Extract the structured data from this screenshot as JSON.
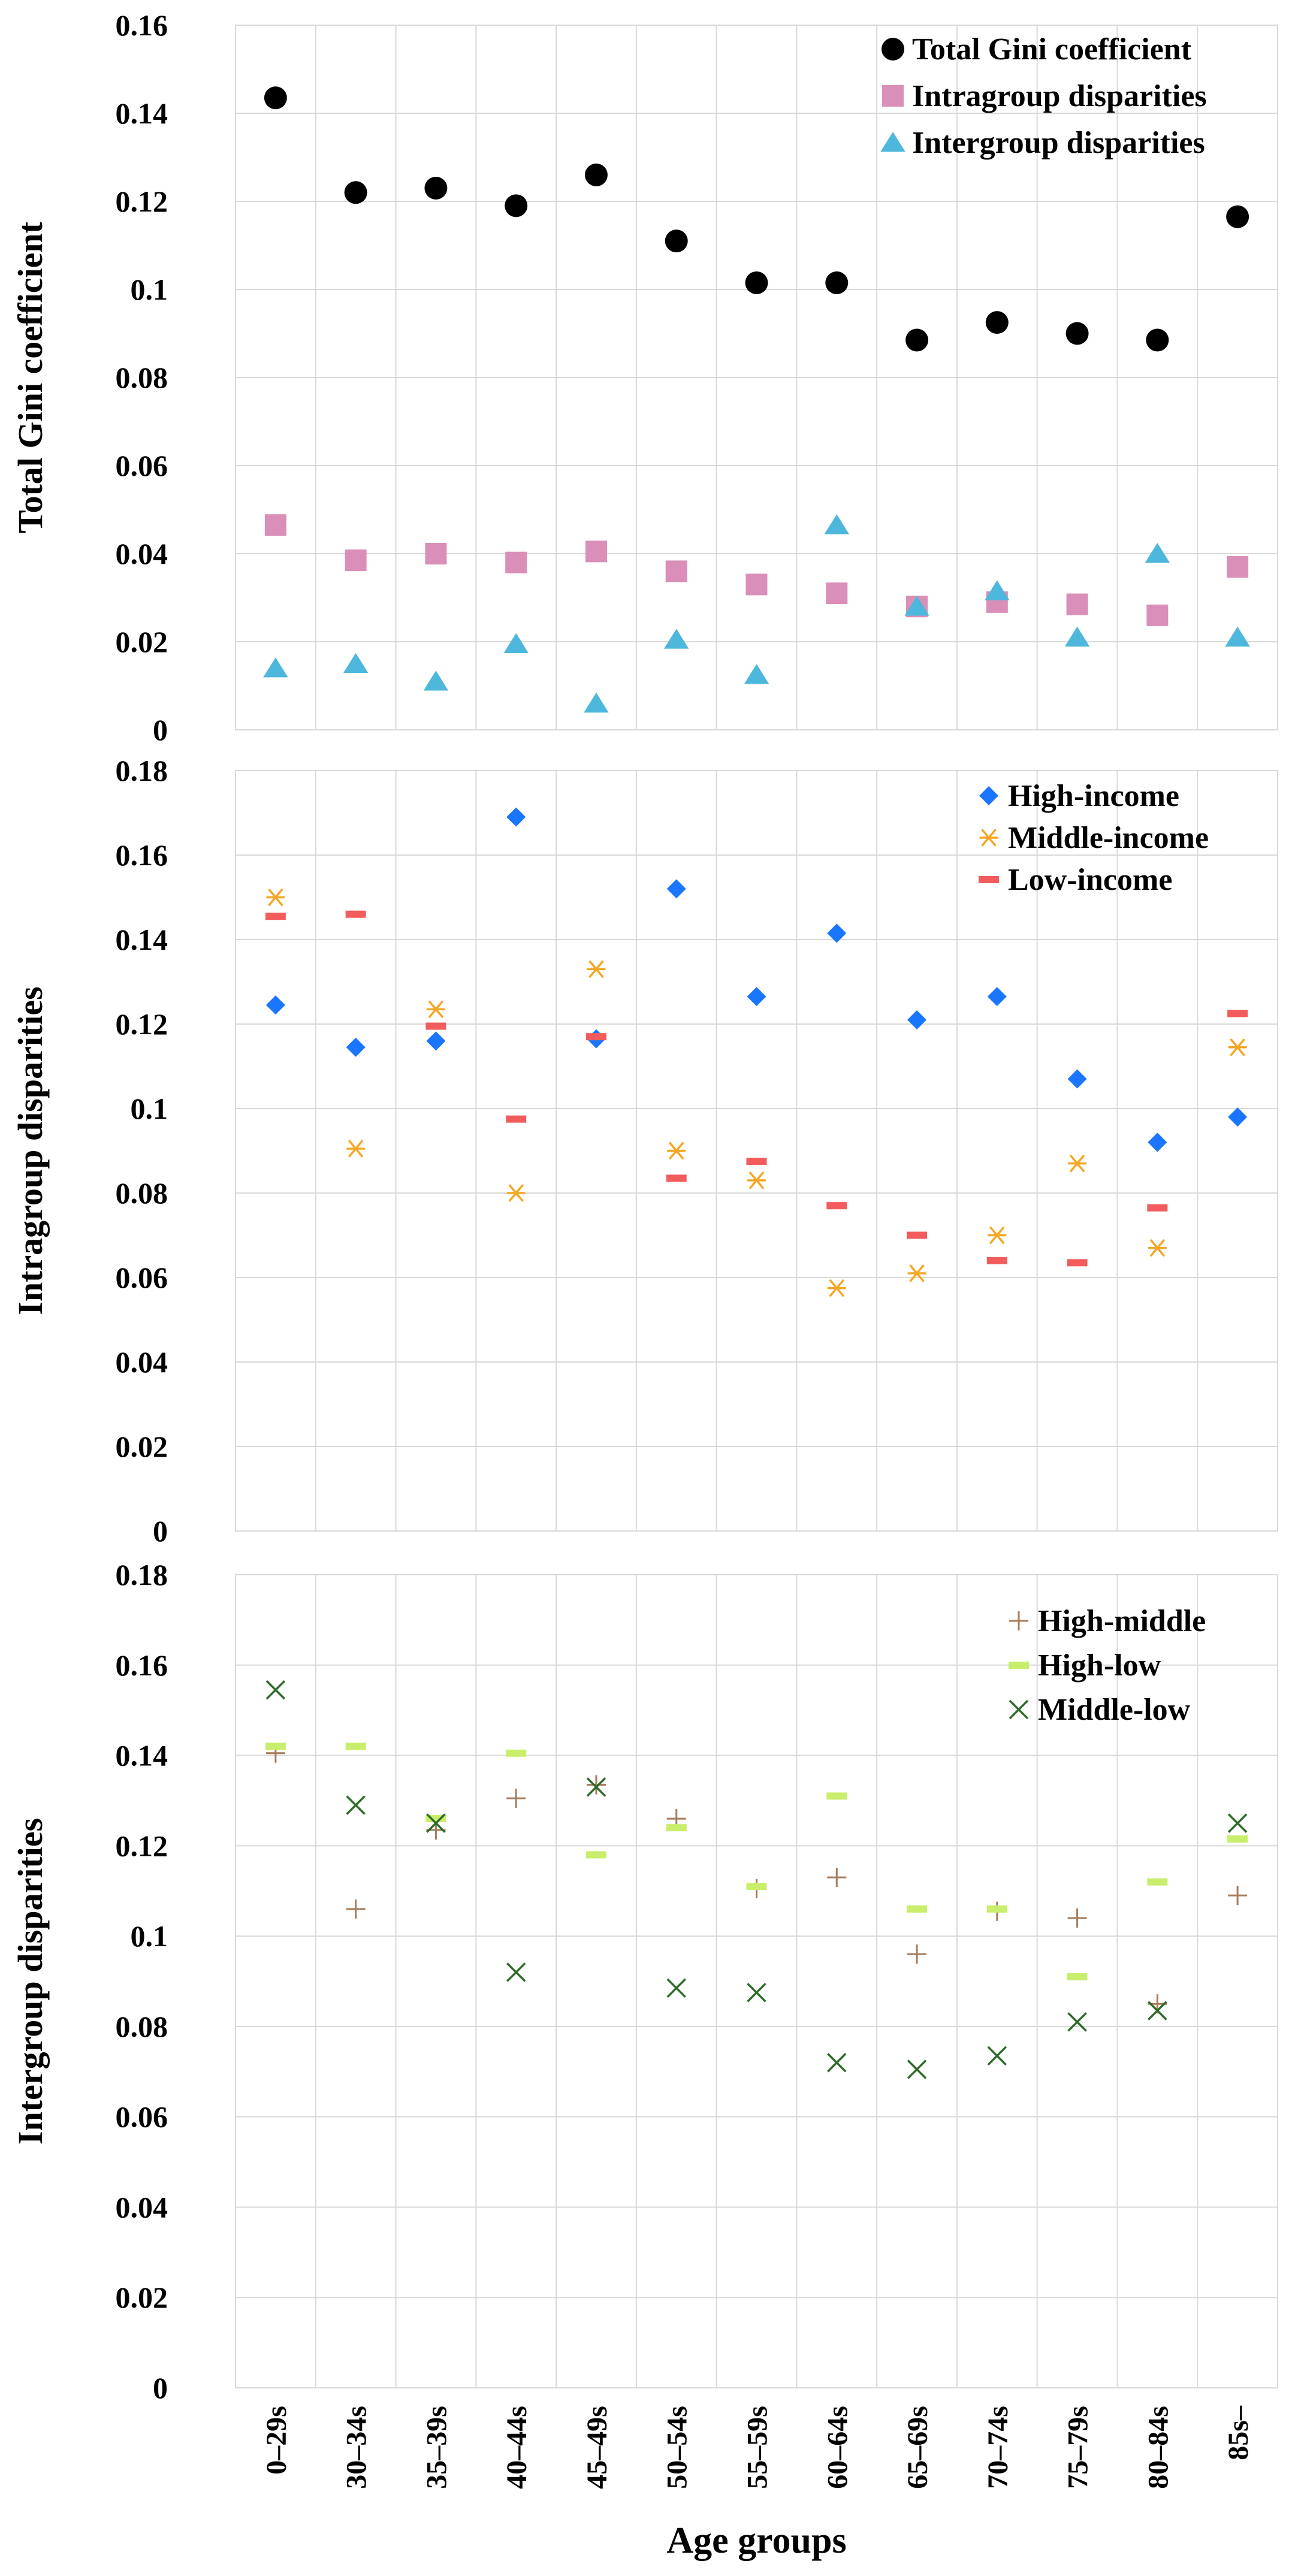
{
  "colors": {
    "grid": "#d9d9d9",
    "total": "#000000",
    "intragroup": "#d98fb8",
    "intergroup": "#4db8dc",
    "high_income": "#1a75ff",
    "middle_income": "#f5a623",
    "low_income": "#f25c5c",
    "high_middle": "#a67b5b",
    "high_low": "#c9ee6b",
    "middle_low": "#2f6b2a"
  },
  "chart_data": [
    {
      "type": "scatter",
      "id": "panel-total",
      "title": "",
      "xlabel": "",
      "ylabel": "Total Gini coefficient",
      "ylim": [
        0,
        0.16
      ],
      "yticks": [
        "0",
        "0.02",
        "0.04",
        "0.06",
        "0.08",
        "0.1",
        "0.12",
        "0.14",
        "0.16"
      ],
      "categories": [
        "0–29s",
        "30–34s",
        "35–39s",
        "40–44s",
        "45–49s",
        "50–54s",
        "55–59s",
        "60–64s",
        "65–69s",
        "70–74s",
        "75–79s",
        "80–84s",
        "85s–"
      ],
      "legend_position": "top-right",
      "series": [
        {
          "name": "Total Gini coefficient",
          "marker": "circle",
          "color_key": "total",
          "values": [
            0.1435,
            0.122,
            0.123,
            0.119,
            0.126,
            0.111,
            0.1015,
            0.1015,
            0.0885,
            0.0925,
            0.09,
            0.0885,
            0.1165
          ]
        },
        {
          "name": "Intragroup disparities",
          "marker": "square",
          "color_key": "intragroup",
          "values": [
            0.0465,
            0.0385,
            0.04,
            0.038,
            0.0405,
            0.036,
            0.033,
            0.031,
            0.028,
            0.029,
            0.0285,
            0.026,
            0.037
          ]
        },
        {
          "name": "Intergroup disparities",
          "marker": "triangle",
          "color_key": "intergroup",
          "values": [
            0.014,
            0.015,
            0.011,
            0.0195,
            0.006,
            0.0205,
            0.0125,
            0.0465,
            0.028,
            0.0315,
            0.021,
            0.04,
            0.021
          ]
        }
      ]
    },
    {
      "type": "scatter",
      "id": "panel-intragroup",
      "title": "",
      "xlabel": "",
      "ylabel": "Intragroup disparities",
      "ylim": [
        0,
        0.18
      ],
      "yticks": [
        "0",
        "0.02",
        "0.04",
        "0.06",
        "0.08",
        "0.1",
        "0.12",
        "0.14",
        "0.16",
        "0.18"
      ],
      "categories": [
        "0–29s",
        "30–34s",
        "35–39s",
        "40–44s",
        "45–49s",
        "50–54s",
        "55–59s",
        "60–64s",
        "65–69s",
        "70–74s",
        "75–79s",
        "80–84s",
        "85s–"
      ],
      "legend_position": "top-right",
      "series": [
        {
          "name": "High-income",
          "marker": "diamond",
          "color_key": "high_income",
          "values": [
            0.1245,
            0.1145,
            0.116,
            0.169,
            0.1165,
            0.152,
            0.1265,
            0.1415,
            0.121,
            0.1265,
            0.107,
            0.092,
            0.098
          ]
        },
        {
          "name": "Middle-income",
          "marker": "asterisk",
          "color_key": "middle_income",
          "values": [
            0.15,
            0.0905,
            0.1235,
            0.08,
            0.133,
            0.09,
            0.083,
            0.0575,
            0.061,
            0.07,
            0.087,
            0.067,
            0.1145
          ]
        },
        {
          "name": "Low-income",
          "marker": "dash",
          "color_key": "low_income",
          "values": [
            0.1455,
            0.146,
            0.1195,
            0.0975,
            0.117,
            0.0835,
            0.0875,
            0.077,
            0.07,
            0.064,
            0.0635,
            0.0765,
            0.1225
          ]
        }
      ]
    },
    {
      "type": "scatter",
      "id": "panel-intergroup",
      "title": "",
      "xlabel": "Age groups",
      "ylabel": "Intergroup disparities",
      "ylim": [
        0,
        0.18
      ],
      "yticks": [
        "0",
        "0.02",
        "0.04",
        "0.06",
        "0.08",
        "0.1",
        "0.12",
        "0.14",
        "0.16",
        "0.18"
      ],
      "categories": [
        "0–29s",
        "30–34s",
        "35–39s",
        "40–44s",
        "45–49s",
        "50–54s",
        "55–59s",
        "60–64s",
        "65–69s",
        "70–74s",
        "75–79s",
        "80–84s",
        "85s–"
      ],
      "legend_position": "top-right",
      "series": [
        {
          "name": "High-middle",
          "marker": "plus",
          "color_key": "high_middle",
          "values": [
            0.1405,
            0.106,
            0.1235,
            0.1305,
            0.1335,
            0.126,
            0.1105,
            0.113,
            0.096,
            0.1055,
            0.104,
            0.085,
            0.109
          ]
        },
        {
          "name": "High-low",
          "marker": "dash",
          "color_key": "high_low",
          "values": [
            0.142,
            0.142,
            0.126,
            0.1405,
            0.118,
            0.124,
            0.111,
            0.131,
            0.106,
            0.106,
            0.091,
            0.112,
            0.1215
          ]
        },
        {
          "name": "Middle-low",
          "marker": "cross",
          "color_key": "middle_low",
          "values": [
            0.1545,
            0.129,
            0.125,
            0.092,
            0.133,
            0.0885,
            0.0875,
            0.072,
            0.0705,
            0.0735,
            0.081,
            0.0835,
            0.125
          ]
        }
      ]
    }
  ]
}
